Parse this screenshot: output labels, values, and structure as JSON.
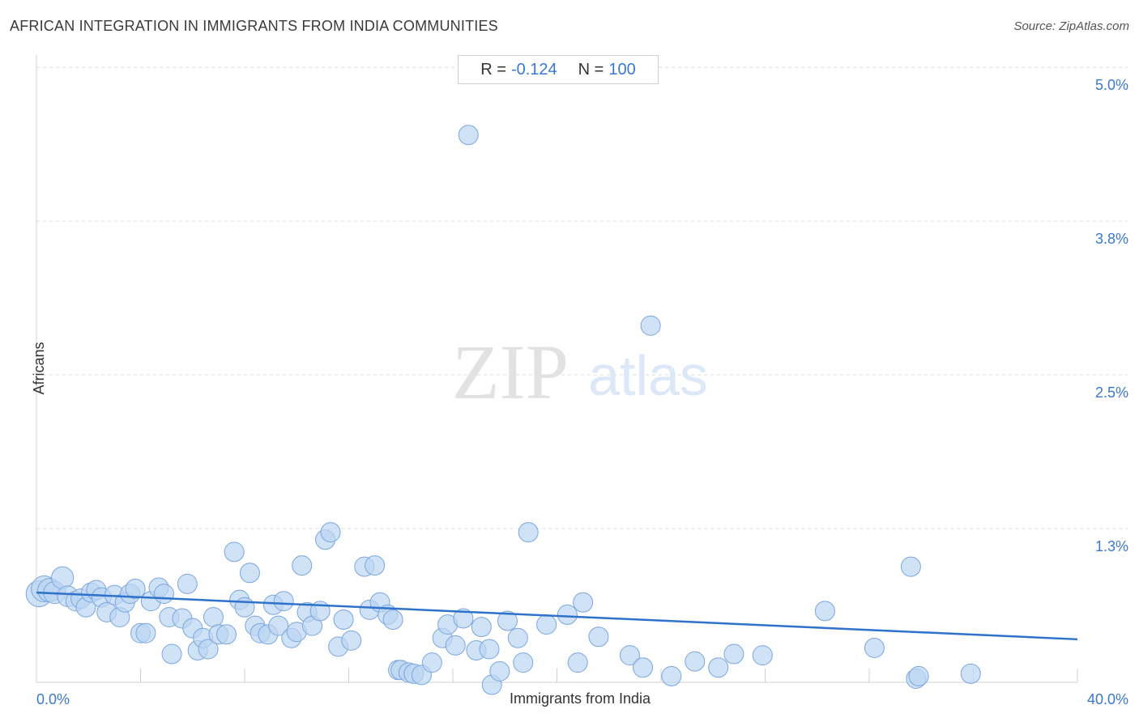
{
  "title": "AFRICAN INTEGRATION IN IMMIGRANTS FROM INDIA COMMUNITIES",
  "source": "Source: ZipAtlas.com",
  "stats": {
    "r_label": "R =",
    "r_value": "-0.124",
    "n_label": "N =",
    "n_value": "100"
  },
  "watermark": {
    "zip": "ZIP",
    "atlas": "atlas"
  },
  "colors": {
    "point_fill": "#bcd5f2",
    "point_stroke": "#7aa6de",
    "trend": "#2f72cc",
    "tick_label": "#3a78d0"
  },
  "chart_data": {
    "type": "scatter",
    "xlabel": "Immigrants from India",
    "ylabel": "Africans",
    "x_tick_labels": [
      "0.0%",
      "40.0%"
    ],
    "y_tick_labels": [
      "1.3%",
      "2.5%",
      "3.8%",
      "5.0%"
    ],
    "y_ticks": [
      1.25,
      2.5,
      3.75,
      5.0
    ],
    "xlim": [
      0,
      40
    ],
    "ylim": [
      0,
      5.1
    ],
    "grid": true,
    "trendline": {
      "x": [
        0,
        40
      ],
      "y": [
        0.73,
        0.35
      ]
    },
    "points": [
      [
        0.1,
        0.72,
        1
      ],
      [
        0.3,
        0.76,
        1
      ],
      [
        0.5,
        0.75,
        0.8
      ],
      [
        0.7,
        0.73,
        0.7
      ],
      [
        1.0,
        0.85,
        0.7
      ],
      [
        1.2,
        0.7,
        0.6
      ],
      [
        1.5,
        0.66,
        0.5
      ],
      [
        1.7,
        0.68,
        0.5
      ],
      [
        1.9,
        0.61,
        0.5
      ],
      [
        2.1,
        0.73,
        0.5
      ],
      [
        2.3,
        0.75,
        0.5
      ],
      [
        2.5,
        0.69,
        0.5
      ],
      [
        2.7,
        0.57,
        0.5
      ],
      [
        3.0,
        0.71,
        0.5
      ],
      [
        3.2,
        0.53,
        0.5
      ],
      [
        3.4,
        0.65,
        0.5
      ],
      [
        3.6,
        0.72,
        0.5
      ],
      [
        3.8,
        0.76,
        0.5
      ],
      [
        4.0,
        0.4,
        0.5
      ],
      [
        4.2,
        0.4,
        0.5
      ],
      [
        4.4,
        0.66,
        0.5
      ],
      [
        4.7,
        0.77,
        0.5
      ],
      [
        4.9,
        0.72,
        0.5
      ],
      [
        5.1,
        0.53,
        0.5
      ],
      [
        5.2,
        0.23,
        0.5
      ],
      [
        5.6,
        0.52,
        0.5
      ],
      [
        5.8,
        0.8,
        0.5
      ],
      [
        6.0,
        0.44,
        0.5
      ],
      [
        6.2,
        0.26,
        0.5
      ],
      [
        6.4,
        0.36,
        0.5
      ],
      [
        6.6,
        0.27,
        0.5
      ],
      [
        6.8,
        0.53,
        0.5
      ],
      [
        7.0,
        0.39,
        0.5
      ],
      [
        7.3,
        0.39,
        0.5
      ],
      [
        7.6,
        1.06,
        0.5
      ],
      [
        7.8,
        0.67,
        0.5
      ],
      [
        8.0,
        0.61,
        0.5
      ],
      [
        8.2,
        0.89,
        0.5
      ],
      [
        8.4,
        0.46,
        0.5
      ],
      [
        8.6,
        0.4,
        0.5
      ],
      [
        8.9,
        0.39,
        0.5
      ],
      [
        9.1,
        0.63,
        0.5
      ],
      [
        9.3,
        0.46,
        0.5
      ],
      [
        9.5,
        0.66,
        0.5
      ],
      [
        9.8,
        0.36,
        0.5
      ],
      [
        10.0,
        0.41,
        0.5
      ],
      [
        10.2,
        0.95,
        0.5
      ],
      [
        10.4,
        0.57,
        0.5
      ],
      [
        10.6,
        0.46,
        0.5
      ],
      [
        10.9,
        0.58,
        0.5
      ],
      [
        11.1,
        1.16,
        0.5
      ],
      [
        11.3,
        1.22,
        0.5
      ],
      [
        11.6,
        0.29,
        0.5
      ],
      [
        11.8,
        0.51,
        0.5
      ],
      [
        12.1,
        0.34,
        0.5
      ],
      [
        12.6,
        0.94,
        0.5
      ],
      [
        12.8,
        0.59,
        0.5
      ],
      [
        13.0,
        0.95,
        0.5
      ],
      [
        13.2,
        0.65,
        0.5
      ],
      [
        13.5,
        0.55,
        0.5
      ],
      [
        13.7,
        0.51,
        0.5
      ],
      [
        13.9,
        0.1,
        0.5
      ],
      [
        14.0,
        0.1,
        0.5
      ],
      [
        14.3,
        0.08,
        0.5
      ],
      [
        14.5,
        0.07,
        0.5
      ],
      [
        14.8,
        0.06,
        0.5
      ],
      [
        15.2,
        0.16,
        0.5
      ],
      [
        15.6,
        0.36,
        0.5
      ],
      [
        15.8,
        0.47,
        0.5
      ],
      [
        16.1,
        0.3,
        0.5
      ],
      [
        16.4,
        0.52,
        0.5
      ],
      [
        16.6,
        4.45,
        0.5
      ],
      [
        16.9,
        0.26,
        0.5
      ],
      [
        17.1,
        0.45,
        0.5
      ],
      [
        17.4,
        0.27,
        0.5
      ],
      [
        17.5,
        -0.02,
        0.5
      ],
      [
        17.8,
        0.09,
        0.5
      ],
      [
        18.1,
        0.5,
        0.5
      ],
      [
        18.5,
        0.36,
        0.5
      ],
      [
        18.7,
        0.16,
        0.5
      ],
      [
        18.9,
        1.22,
        0.5
      ],
      [
        19.6,
        0.47,
        0.5
      ],
      [
        20.4,
        0.55,
        0.5
      ],
      [
        20.8,
        0.16,
        0.5
      ],
      [
        21.0,
        0.65,
        0.5
      ],
      [
        21.6,
        0.37,
        0.5
      ],
      [
        22.8,
        0.22,
        0.5
      ],
      [
        23.3,
        0.12,
        0.5
      ],
      [
        23.6,
        2.9,
        0.5
      ],
      [
        24.4,
        0.05,
        0.5
      ],
      [
        25.3,
        0.17,
        0.5
      ],
      [
        26.2,
        0.12,
        0.5
      ],
      [
        26.8,
        0.23,
        0.5
      ],
      [
        27.9,
        0.22,
        0.5
      ],
      [
        30.3,
        0.58,
        0.5
      ],
      [
        32.2,
        0.28,
        0.5
      ],
      [
        33.6,
        0.94,
        0.5
      ],
      [
        33.8,
        0.03,
        0.5
      ],
      [
        33.9,
        0.05,
        0.5
      ],
      [
        35.9,
        0.07,
        0.5
      ]
    ]
  }
}
